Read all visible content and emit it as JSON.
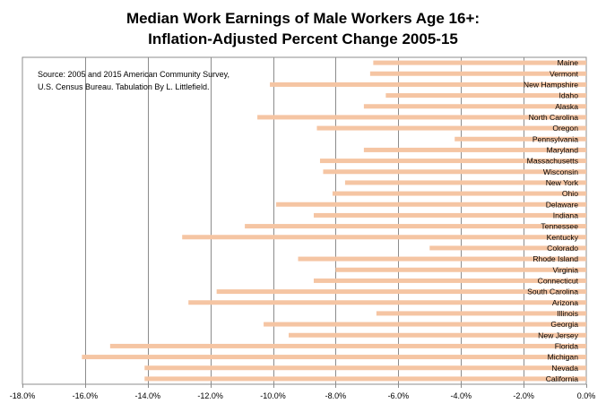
{
  "chart_data": {
    "type": "bar",
    "orientation": "horizontal",
    "title": "Median Work Earnings of Male Workers Age 16+:",
    "subtitle": "Inflation-Adjusted Percent Change 2005-15",
    "source_lines": [
      "Source:  2005 and 2015 American Community Survey,",
      "U.S. Census Bureau.  Tabulation By L. Littlefield."
    ],
    "categories": [
      "Maine",
      "Vermont",
      "New Hampshire",
      "Idaho",
      "Alaska",
      "North Carolina",
      "Oregon",
      "Pennsylvania",
      "Maryland",
      "Massachusetts",
      "Wisconsin",
      "New York",
      "Ohio",
      "Delaware",
      "Indiana",
      "Tennessee",
      "Kentucky",
      "Colorado",
      "Rhode Island",
      "Virginia",
      "Connecticut",
      "South Carolina",
      "Arizona",
      "Illinois",
      "Georgia",
      "New Jersey",
      "Florida",
      "Michigan",
      "Nevada",
      "California"
    ],
    "values": [
      -6.8,
      -6.9,
      -10.1,
      -6.4,
      -7.1,
      -10.5,
      -8.6,
      -4.2,
      -7.1,
      -8.5,
      -8.4,
      -7.7,
      -8.1,
      -9.9,
      -8.7,
      -10.9,
      -12.9,
      -5.0,
      -9.2,
      -8.0,
      -8.7,
      -11.8,
      -12.7,
      -6.7,
      -10.3,
      -9.5,
      -15.2,
      -16.1,
      -14.1,
      -14.1
    ],
    "xlim": [
      -18,
      0
    ],
    "x_ticks": [
      "-18.0%",
      "-16.0%",
      "-14.0%",
      "-12.0%",
      "-10.0%",
      "-8.0%",
      "-6.0%",
      "-4.0%",
      "-2.0%",
      "0.0%"
    ],
    "grid": true,
    "bar_color": "#F5C5A3",
    "grid_color": "#8C8C8C"
  }
}
